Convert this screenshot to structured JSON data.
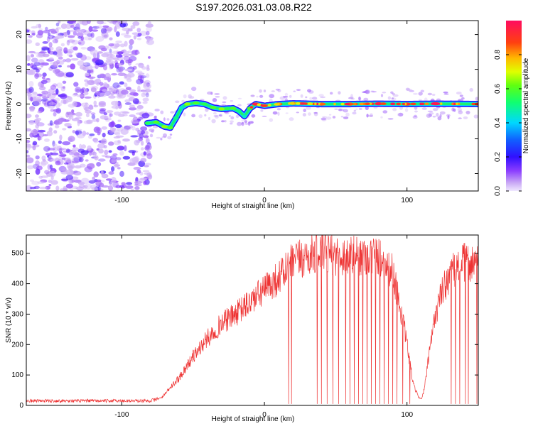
{
  "title": "S197.2026.031.03.08.R22",
  "chart_data": [
    {
      "type": "heatmap",
      "xlabel": "Height of straight line (km)",
      "ylabel": "Frequency (Hz)",
      "xlim": [
        -167,
        150
      ],
      "ylim": [
        -25,
        24
      ],
      "xticks": [
        -100,
        0,
        100
      ],
      "yticks": [
        -20,
        -10,
        0,
        10,
        20
      ],
      "colorbar": {
        "label": "Normalized spectral amplitude",
        "range": [
          0,
          1
        ],
        "ticks": [
          "0.0",
          "0.2",
          "0.4",
          "0.6",
          "0.8"
        ],
        "tick_values": [
          0,
          0.2,
          0.4,
          0.6,
          0.8
        ]
      },
      "noise_region_x": [
        -167,
        -80
      ],
      "signal_track": {
        "height_km": [
          -82,
          -76,
          -70,
          -66,
          -62,
          -58,
          -54,
          -48,
          -42,
          -36,
          -30,
          -26,
          -22,
          -18,
          -14,
          -10,
          -6,
          0,
          10,
          20,
          40,
          60,
          80,
          100,
          120,
          150
        ],
        "frequency_hz": [
          -5.5,
          -5.2,
          -6.5,
          -6.8,
          -4,
          -1,
          0,
          0.3,
          0,
          -1,
          -1.4,
          -1.3,
          -1.2,
          -2,
          -3.5,
          -1.2,
          0,
          -0.5,
          0,
          0.2,
          0,
          0,
          0.1,
          0,
          0.1,
          0
        ],
        "amplitude": [
          0.55,
          0.6,
          0.65,
          0.6,
          0.5,
          0.45,
          0.65,
          0.6,
          0.55,
          0.6,
          0.65,
          0.55,
          0.6,
          0.5,
          0.45,
          0.6,
          0.95,
          0.85,
          0.9,
          0.75,
          0.95,
          0.85,
          0.95,
          0.9,
          0.95,
          0.9
        ]
      }
    },
    {
      "type": "line",
      "xlabel": "Height of straight line (km)",
      "ylabel": "SNR (10 * v/v)",
      "xlim": [
        -167,
        150
      ],
      "ylim": [
        0,
        560
      ],
      "xticks": [
        -100,
        0,
        100
      ],
      "yticks": [
        0,
        100,
        200,
        300,
        400,
        500
      ],
      "color": "#ee3333",
      "series": [
        {
          "name": "SNR",
          "envelope_x": [
            -167,
            -80,
            -72,
            -60,
            -50,
            -40,
            -30,
            -20,
            -10,
            0,
            10,
            20,
            30,
            40,
            50,
            60,
            70,
            80,
            90,
            95,
            100,
            103,
            105,
            108,
            110,
            112,
            115,
            120,
            125,
            130,
            140,
            150
          ],
          "envelope_y": [
            15,
            15,
            25,
            90,
            160,
            220,
            270,
            300,
            340,
            380,
            420,
            470,
            490,
            500,
            495,
            490,
            495,
            490,
            440,
            330,
            200,
            110,
            60,
            30,
            20,
            50,
            150,
            300,
            380,
            430,
            470,
            470
          ],
          "dropouts_x": [
            17,
            19,
            37,
            40,
            44,
            48,
            52,
            57,
            60,
            63,
            66,
            69,
            72,
            75,
            78,
            81,
            84,
            87,
            90,
            93,
            97,
            102,
            131,
            134,
            137,
            141,
            143,
            149
          ],
          "dropout_y": 5
        }
      ]
    }
  ]
}
